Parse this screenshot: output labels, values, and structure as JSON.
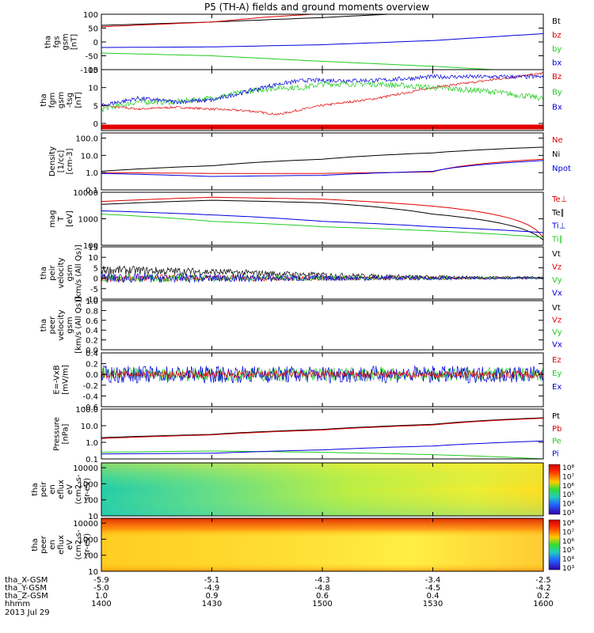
{
  "title": "P5 (TH-A) fields and ground moments overview",
  "date_label": "2013 Jul 29",
  "colors": {
    "black": "#000000",
    "red": "#e00000",
    "green": "#22cc22",
    "blue": "#0000dd"
  },
  "chart_data": [
    {
      "id": "fgs",
      "type": "line",
      "ylabel": [
        "tha",
        "fgs",
        "gsm",
        "[nT]"
      ],
      "yticks": [
        100,
        50,
        0,
        -50,
        -100
      ],
      "ylim": [
        -100,
        100
      ],
      "legend": [
        {
          "t": "Bt",
          "c": "black"
        },
        {
          "t": "bz",
          "c": "red"
        },
        {
          "t": "by",
          "c": "green"
        },
        {
          "t": "bx",
          "c": "blue"
        }
      ],
      "series": [
        {
          "name": "Bt",
          "color": "black",
          "points": [
            [
              1400,
              60
            ],
            [
              1430,
              72
            ],
            [
              1500,
              88
            ],
            [
              1530,
              108
            ],
            [
              1600,
              120
            ]
          ]
        },
        {
          "name": "bz",
          "color": "red",
          "points": [
            [
              1400,
              55
            ],
            [
              1430,
              72
            ],
            [
              1445,
              90
            ],
            [
              1500,
              102
            ]
          ]
        },
        {
          "name": "by",
          "color": "green",
          "points": [
            [
              1400,
              -40
            ],
            [
              1430,
              -50
            ],
            [
              1500,
              -70
            ],
            [
              1530,
              -88
            ],
            [
              1600,
              -110
            ]
          ]
        },
        {
          "name": "bx",
          "color": "blue",
          "points": [
            [
              1400,
              -20
            ],
            [
              1430,
              -18
            ],
            [
              1500,
              -10
            ],
            [
              1530,
              5
            ],
            [
              1600,
              30
            ]
          ]
        }
      ]
    },
    {
      "id": "fgm",
      "type": "line",
      "ylabel": [
        "tha",
        "fgm",
        "gsm",
        "-tsg",
        "[nT]"
      ],
      "yticks": [
        15,
        10,
        5,
        0
      ],
      "ylim": [
        -2,
        15
      ],
      "legend": [
        {
          "t": "Bz",
          "c": "red"
        },
        {
          "t": "By",
          "c": "green"
        },
        {
          "t": "Bx",
          "c": "blue"
        }
      ],
      "band": {
        "y": -1,
        "color": "red"
      },
      "series": [
        {
          "name": "Bz",
          "color": "red",
          "noise": 0.3,
          "points": [
            [
              1400,
              5
            ],
            [
              1410,
              4
            ],
            [
              1420,
              4.5
            ],
            [
              1430,
              4
            ],
            [
              1440,
              3.5
            ],
            [
              1448,
              2.5
            ],
            [
              1455,
              4
            ],
            [
              1500,
              5
            ],
            [
              1515,
              7
            ],
            [
              1530,
              10
            ],
            [
              1545,
              12
            ],
            [
              1600,
              14
            ]
          ]
        },
        {
          "name": "By",
          "color": "green",
          "noise": 0.8,
          "points": [
            [
              1400,
              4
            ],
            [
              1410,
              6
            ],
            [
              1420,
              6
            ],
            [
              1430,
              7
            ],
            [
              1440,
              9
            ],
            [
              1448,
              10
            ],
            [
              1455,
              10
            ],
            [
              1500,
              11
            ],
            [
              1515,
              11
            ],
            [
              1530,
              10
            ],
            [
              1545,
              9
            ],
            [
              1600,
              7
            ]
          ]
        },
        {
          "name": "Bx",
          "color": "blue",
          "noise": 0.6,
          "points": [
            [
              1400,
              5
            ],
            [
              1410,
              7
            ],
            [
              1420,
              6
            ],
            [
              1430,
              6.5
            ],
            [
              1440,
              9
            ],
            [
              1448,
              11
            ],
            [
              1455,
              12
            ],
            [
              1500,
              12
            ],
            [
              1515,
              12
            ],
            [
              1530,
              13
            ],
            [
              1545,
              13
            ],
            [
              1600,
              13
            ]
          ]
        }
      ]
    },
    {
      "id": "density",
      "type": "line",
      "log": true,
      "ylabel": [
        "Density",
        "[1/cc]",
        "[cm-3]"
      ],
      "yticks": [
        100.0,
        10.0,
        1.0,
        0.1
      ],
      "yticklabels": [
        "100.0",
        "10.0",
        "1.0",
        "0.1"
      ],
      "ylim": [
        0.1,
        200
      ],
      "legend": [
        {
          "t": "Ne",
          "c": "red"
        },
        {
          "t": "Ni",
          "c": "black"
        },
        {
          "t": "Npot",
          "c": "blue"
        }
      ],
      "series": [
        {
          "name": "Ne",
          "color": "red",
          "points": [
            [
              1400,
              1.0
            ],
            [
              1430,
              0.9
            ],
            [
              1500,
              0.9
            ],
            [
              1530,
              1.1
            ],
            [
              1600,
              6
            ]
          ]
        },
        {
          "name": "Ni",
          "color": "black",
          "points": [
            [
              1400,
              1.2
            ],
            [
              1430,
              2.5
            ],
            [
              1500,
              6
            ],
            [
              1530,
              14
            ],
            [
              1600,
              30
            ]
          ]
        },
        {
          "name": "Npot",
          "color": "blue",
          "points": [
            [
              1400,
              0.9
            ],
            [
              1430,
              0.6
            ],
            [
              1500,
              0.7
            ],
            [
              1530,
              1.2
            ],
            [
              1600,
              5
            ]
          ]
        }
      ]
    },
    {
      "id": "temp",
      "type": "line",
      "log": true,
      "ylabel": [
        "mag",
        "T",
        "[eV]"
      ],
      "yticks": [
        10000,
        1000,
        100
      ],
      "yticklabels": [
        "10000",
        "1000",
        "100"
      ],
      "ylim": [
        100,
        10000
      ],
      "legend": [
        {
          "t": "Te⊥",
          "c": "red"
        },
        {
          "t": "Te∥",
          "c": "black"
        },
        {
          "t": "Ti⊥",
          "c": "blue"
        },
        {
          "t": "Ti∥",
          "c": "green"
        }
      ],
      "series": [
        {
          "name": "Te⊥",
          "color": "red",
          "points": [
            [
              1400,
              4500
            ],
            [
              1430,
              6500
            ],
            [
              1500,
              5500
            ],
            [
              1530,
              3000
            ],
            [
              1600,
              200
            ]
          ]
        },
        {
          "name": "Te∥",
          "color": "black",
          "points": [
            [
              1400,
              3500
            ],
            [
              1430,
              5000
            ],
            [
              1500,
              4000
            ],
            [
              1530,
              1500
            ],
            [
              1600,
              160
            ]
          ]
        },
        {
          "name": "Ti⊥",
          "color": "blue",
          "points": [
            [
              1400,
              2000
            ],
            [
              1430,
              1400
            ],
            [
              1500,
              800
            ],
            [
              1530,
              500
            ],
            [
              1600,
              300
            ]
          ]
        },
        {
          "name": "Ti∥",
          "color": "green",
          "points": [
            [
              1400,
              1500
            ],
            [
              1430,
              800
            ],
            [
              1500,
              500
            ],
            [
              1530,
              350
            ],
            [
              1600,
              200
            ]
          ]
        }
      ]
    },
    {
      "id": "peirv",
      "type": "line",
      "ylabel": [
        "tha",
        "peir",
        "velocity",
        "gsm",
        "[km/s (All Qs)]"
      ],
      "yticks": [
        15,
        10,
        5,
        0,
        -5,
        -10
      ],
      "ylim": [
        -10,
        15
      ],
      "legend": [
        {
          "t": "Vt",
          "c": "black"
        },
        {
          "t": "Vz",
          "c": "red"
        },
        {
          "t": "Vy",
          "c": "green"
        },
        {
          "t": "Vx",
          "c": "blue"
        }
      ],
      "series": [
        {
          "name": "Vt",
          "color": "black",
          "noise": 2.2,
          "decay": true,
          "points": [
            [
              1400,
              4
            ],
            [
              1430,
              3
            ],
            [
              1500,
              1.5
            ],
            [
              1530,
              0.5
            ],
            [
              1600,
              0.5
            ]
          ]
        },
        {
          "name": "Vz",
          "color": "red",
          "noise": 2.0,
          "decay": true,
          "points": [
            [
              1400,
              0
            ],
            [
              1600,
              0
            ]
          ]
        },
        {
          "name": "Vy",
          "color": "green",
          "noise": 2.0,
          "decay": true,
          "points": [
            [
              1400,
              0
            ],
            [
              1600,
              0
            ]
          ]
        },
        {
          "name": "Vx",
          "color": "blue",
          "noise": 2.4,
          "decay": true,
          "points": [
            [
              1400,
              0
            ],
            [
              1600,
              0
            ]
          ]
        }
      ]
    },
    {
      "id": "peerv",
      "type": "line",
      "ylabel": [
        "tha",
        "peer",
        "velocity",
        "gsm",
        "[km/s (All Qs)]"
      ],
      "yticks": [
        1.0,
        0.8,
        0.6,
        0.4,
        0.2,
        0.0
      ],
      "yticklabels": [
        "1.0",
        "0.8",
        "0.6",
        "0.4",
        "0.2",
        "0.0"
      ],
      "ylim": [
        0,
        1
      ],
      "legend": [
        {
          "t": "Vt",
          "c": "black"
        },
        {
          "t": "Vz",
          "c": "red"
        },
        {
          "t": "Vy",
          "c": "green"
        },
        {
          "t": "Vx",
          "c": "blue"
        }
      ],
      "series": []
    },
    {
      "id": "efield",
      "type": "line",
      "ylabel": [
        "E=-VxB",
        "[mV/m]"
      ],
      "yticks": [
        0.4,
        0.2,
        0.0,
        -0.2,
        -0.4,
        -0.6
      ],
      "yticklabels": [
        "0.4",
        "0.2",
        "0.0",
        "-0.2",
        "-0.4",
        "-0.6"
      ],
      "ylim": [
        -0.6,
        0.4
      ],
      "legend": [
        {
          "t": "Ez",
          "c": "red"
        },
        {
          "t": "Ey",
          "c": "green"
        },
        {
          "t": "Ex",
          "c": "blue"
        }
      ],
      "series": [
        {
          "name": "Ey",
          "color": "green",
          "noise": 0.13,
          "points": [
            [
              1400,
              0
            ],
            [
              1600,
              0
            ]
          ]
        },
        {
          "name": "Ex",
          "color": "blue",
          "noise": 0.16,
          "points": [
            [
              1400,
              0
            ],
            [
              1600,
              0
            ]
          ]
        },
        {
          "name": "Ez",
          "color": "red",
          "noise": 0.07,
          "points": [
            [
              1400,
              0
            ],
            [
              1600,
              0
            ]
          ]
        }
      ]
    },
    {
      "id": "pressure",
      "type": "line",
      "log": true,
      "ylabel": [
        "Pressure",
        "[nPa]"
      ],
      "yticks": [
        100.0,
        10.0,
        1.0,
        0.1
      ],
      "yticklabels": [
        "100.0",
        "10.0",
        "1.0",
        "0.1"
      ],
      "ylim": [
        0.1,
        100
      ],
      "legend": [
        {
          "t": "Pt",
          "c": "black"
        },
        {
          "t": "Pb",
          "c": "red"
        },
        {
          "t": "Pe",
          "c": "green"
        },
        {
          "t": "Pi",
          "c": "blue"
        }
      ],
      "series": [
        {
          "name": "Pt",
          "color": "black",
          "points": [
            [
              1400,
              1.9
            ],
            [
              1430,
              3
            ],
            [
              1500,
              6
            ],
            [
              1530,
              12
            ],
            [
              1600,
              30
            ]
          ]
        },
        {
          "name": "Pb",
          "color": "red",
          "points": [
            [
              1400,
              1.7
            ],
            [
              1430,
              2.8
            ],
            [
              1500,
              5.5
            ],
            [
              1530,
              11
            ],
            [
              1600,
              28
            ]
          ]
        },
        {
          "name": "Pe",
          "color": "green",
          "points": [
            [
              1400,
              0.25
            ],
            [
              1430,
              0.3
            ],
            [
              1500,
              0.25
            ],
            [
              1530,
              0.18
            ],
            [
              1600,
              0.1
            ]
          ]
        },
        {
          "name": "Pi",
          "color": "blue",
          "points": [
            [
              1400,
              0.2
            ],
            [
              1430,
              0.22
            ],
            [
              1500,
              0.35
            ],
            [
              1530,
              0.6
            ],
            [
              1600,
              1.2
            ]
          ]
        }
      ]
    },
    {
      "id": "peir_spec",
      "type": "heatmap",
      "ylabel": [
        "tha",
        "peir",
        "en",
        "eflux",
        "eV",
        "(cm2-s-",
        "sr-eV)"
      ],
      "yticks": [
        10000,
        1000,
        100,
        10
      ],
      "yticklabels": [
        "10000",
        "1000",
        "100",
        "10"
      ],
      "colorbar": {
        "ticks": [
          "10⁸",
          "10⁷",
          "10⁶",
          "10⁵",
          "10⁴",
          "10³"
        ]
      }
    },
    {
      "id": "peer_spec",
      "type": "heatmap",
      "ylabel": [
        "tha",
        "peer",
        "en",
        "eflux",
        "eV",
        "(cm2-s-",
        "sr-eV)"
      ],
      "yticks": [
        10000,
        1000,
        100,
        10
      ],
      "yticklabels": [
        "10000",
        "1000",
        "100",
        "10"
      ],
      "colorbar": {
        "ticks": [
          "10⁸",
          "10⁷",
          "10⁶",
          "10⁵",
          "10⁴",
          "10³"
        ]
      }
    }
  ],
  "x_axis": {
    "range": [
      1400,
      1600
    ],
    "rows": [
      {
        "label": "tha_X-GSM",
        "values": [
          "-5.9",
          "-5.1",
          "-4.3",
          "-3.4",
          "-2.5"
        ]
      },
      {
        "label": "tha_Y-GSM",
        "values": [
          "-5.0",
          "-4.9",
          "-4.8",
          "-4.5",
          "-4.2"
        ]
      },
      {
        "label": "tha_Z-GSM",
        "values": [
          "1.0",
          "0.9",
          "0.6",
          "0.4",
          "0.2"
        ]
      },
      {
        "label": "hhmm",
        "values": [
          "1400",
          "1430",
          "1500",
          "1530",
          "1600"
        ]
      }
    ]
  }
}
